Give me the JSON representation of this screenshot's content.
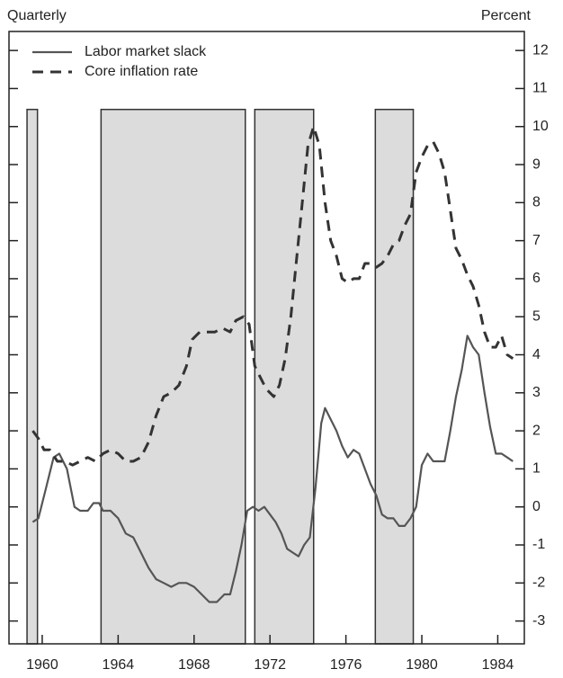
{
  "chart_data": {
    "type": "line",
    "left_label": "Quarterly",
    "right_label": "Percent",
    "xlim": [
      1958.25,
      1985.4
    ],
    "ylim": [
      -3.6,
      12.5
    ],
    "xticks": [
      1960,
      1964,
      1968,
      1972,
      1976,
      1980,
      1984
    ],
    "yticks": [
      -3,
      -2,
      -1,
      0,
      1,
      2,
      3,
      4,
      5,
      6,
      7,
      8,
      9,
      10,
      11,
      12
    ],
    "grid": false,
    "legend": "top-left",
    "band_color": "#dcdcdc",
    "band_top": 10.45,
    "bands": [
      [
        1959.2,
        1959.75
      ],
      [
        1963.1,
        1970.7
      ],
      [
        1971.2,
        1974.3
      ],
      [
        1977.55,
        1979.55
      ]
    ],
    "series": [
      {
        "name": "Labor market slack",
        "color": "#555555",
        "dash": false,
        "x": [
          1959.5,
          1959.8,
          1960.2,
          1960.6,
          1960.9,
          1961.3,
          1961.7,
          1962.0,
          1962.4,
          1962.7,
          1963.0,
          1963.2,
          1963.6,
          1964.0,
          1964.4,
          1964.8,
          1965.2,
          1965.6,
          1966.0,
          1966.4,
          1966.8,
          1967.2,
          1967.6,
          1968.0,
          1968.4,
          1968.8,
          1969.2,
          1969.6,
          1969.9,
          1970.2,
          1970.5,
          1970.8,
          1971.1,
          1971.4,
          1971.7,
          1972.0,
          1972.3,
          1972.6,
          1972.9,
          1973.2,
          1973.5,
          1973.8,
          1974.1,
          1974.4,
          1974.7,
          1974.9,
          1975.2,
          1975.5,
          1975.8,
          1976.1,
          1976.4,
          1976.7,
          1977.0,
          1977.3,
          1977.6,
          1977.9,
          1978.2,
          1978.5,
          1978.8,
          1979.1,
          1979.4,
          1979.7,
          1980.0,
          1980.3,
          1980.6,
          1980.9,
          1981.2,
          1981.5,
          1981.8,
          1982.1,
          1982.4,
          1982.7,
          1983.0,
          1983.3,
          1983.6,
          1983.9,
          1984.2,
          1984.5,
          1984.8
        ],
        "values": [
          -0.4,
          -0.3,
          0.5,
          1.3,
          1.4,
          1.0,
          0.0,
          -0.1,
          -0.1,
          0.1,
          0.1,
          -0.1,
          -0.1,
          -0.3,
          -0.7,
          -0.8,
          -1.2,
          -1.6,
          -1.9,
          -2.0,
          -2.1,
          -2.0,
          -2.0,
          -2.1,
          -2.3,
          -2.5,
          -2.5,
          -2.3,
          -2.3,
          -1.7,
          -1.0,
          -0.1,
          0.0,
          -0.1,
          0.0,
          -0.2,
          -0.4,
          -0.7,
          -1.1,
          -1.2,
          -1.3,
          -1.0,
          -0.8,
          0.5,
          2.2,
          2.6,
          2.3,
          2.0,
          1.6,
          1.3,
          1.5,
          1.4,
          1.0,
          0.6,
          0.3,
          -0.2,
          -0.3,
          -0.3,
          -0.5,
          -0.5,
          -0.3,
          0.0,
          1.1,
          1.4,
          1.2,
          1.2,
          1.2,
          2.0,
          2.9,
          3.6,
          4.5,
          4.2,
          4.0,
          3.0,
          2.1,
          1.4,
          1.4,
          1.3,
          1.2
        ]
      },
      {
        "name": "Core inflation rate",
        "color": "#333333",
        "dash": true,
        "x": [
          1959.5,
          1959.8,
          1960.1,
          1960.4,
          1960.8,
          1961.2,
          1961.6,
          1962.0,
          1962.4,
          1962.8,
          1963.2,
          1963.6,
          1964.0,
          1964.4,
          1964.8,
          1965.2,
          1965.6,
          1966.0,
          1966.4,
          1966.8,
          1967.2,
          1967.6,
          1967.9,
          1968.3,
          1968.7,
          1969.1,
          1969.5,
          1969.9,
          1970.2,
          1970.6,
          1970.9,
          1971.2,
          1971.5,
          1971.8,
          1972.2,
          1972.5,
          1972.8,
          1973.1,
          1973.4,
          1973.7,
          1974.0,
          1974.3,
          1974.6,
          1974.9,
          1975.2,
          1975.5,
          1975.8,
          1976.1,
          1976.4,
          1976.7,
          1977.0,
          1977.3,
          1977.6,
          1977.9,
          1978.2,
          1978.5,
          1978.8,
          1979.1,
          1979.4,
          1979.7,
          1980.0,
          1980.3,
          1980.6,
          1980.9,
          1981.2,
          1981.5,
          1981.8,
          1982.1,
          1982.4,
          1982.7,
          1983.0,
          1983.3,
          1983.6,
          1983.9,
          1984.2,
          1984.5,
          1984.8
        ],
        "values": [
          2.0,
          1.8,
          1.5,
          1.5,
          1.2,
          1.2,
          1.1,
          1.2,
          1.3,
          1.2,
          1.4,
          1.5,
          1.4,
          1.2,
          1.2,
          1.3,
          1.7,
          2.4,
          2.9,
          3.0,
          3.2,
          3.7,
          4.4,
          4.6,
          4.6,
          4.6,
          4.7,
          4.6,
          4.9,
          5.0,
          4.8,
          3.7,
          3.4,
          3.1,
          2.9,
          3.2,
          3.9,
          5.0,
          6.5,
          8.0,
          9.5,
          10.0,
          9.5,
          8.0,
          7.0,
          6.6,
          6.0,
          5.9,
          6.0,
          6.0,
          6.4,
          6.4,
          6.3,
          6.4,
          6.6,
          6.9,
          7.0,
          7.4,
          7.7,
          8.8,
          9.2,
          9.5,
          9.6,
          9.3,
          8.8,
          7.8,
          6.8,
          6.5,
          6.1,
          5.8,
          5.3,
          4.6,
          4.2,
          4.2,
          4.5,
          4.0,
          3.9
        ]
      }
    ]
  }
}
